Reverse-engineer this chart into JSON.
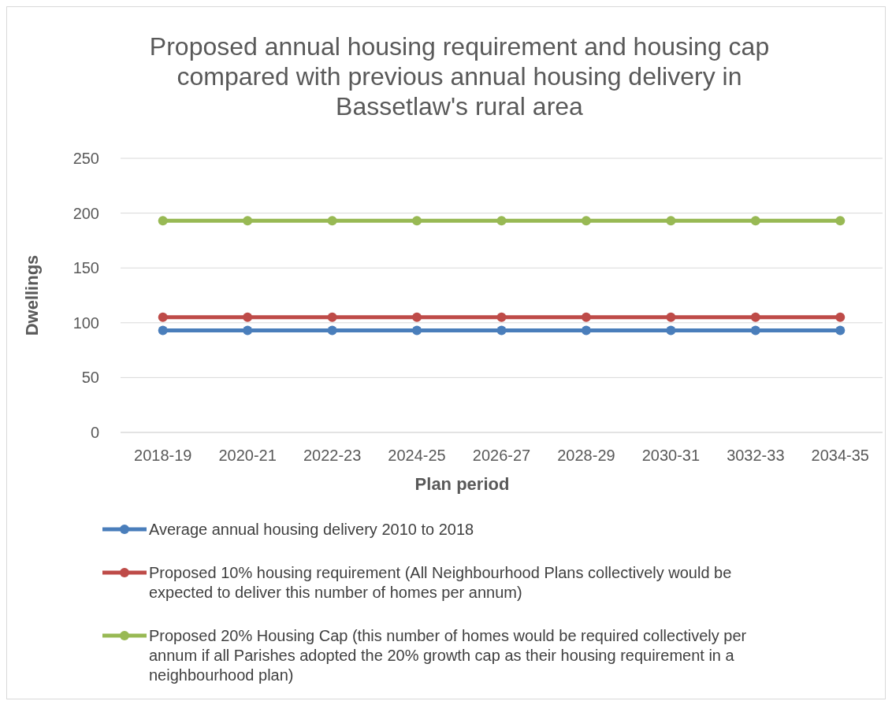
{
  "chart_data": {
    "type": "line",
    "title": "Proposed annual housing requirement and housing cap compared with previous annual housing delivery in Bassetlaw's rural area",
    "xlabel": "Plan period",
    "ylabel": "Dwellings",
    "categories": [
      "2018-19",
      "2020-21",
      "2022-23",
      "2024-25",
      "2026-27",
      "2028-29",
      "2030-31",
      "3032-33",
      "2034-35"
    ],
    "series": [
      {
        "name": "Average annual housing delivery 2010 to 2018",
        "color": "#4a7ebb",
        "values": [
          93,
          93,
          93,
          93,
          93,
          93,
          93,
          93,
          93
        ]
      },
      {
        "name": "Proposed 10% housing requirement (All Neighbourhood Plans collectively would be expected to deliver this number of homes per annum)",
        "color": "#be4b48",
        "values": [
          105,
          105,
          105,
          105,
          105,
          105,
          105,
          105,
          105
        ]
      },
      {
        "name": "Proposed 20% Housing Cap (this number of homes would be required collectively per annum if all Parishes adopted the 20% growth cap as their housing requirement in a neighbourhood plan)",
        "color": "#98b954",
        "values": [
          193,
          193,
          193,
          193,
          193,
          193,
          193,
          193,
          193
        ]
      }
    ],
    "ylim": [
      0,
      250
    ],
    "yticks": [
      0,
      50,
      100,
      150,
      200,
      250
    ],
    "grid": "y",
    "legend": "bottom",
    "marker": "circle",
    "line_style": "solid"
  }
}
